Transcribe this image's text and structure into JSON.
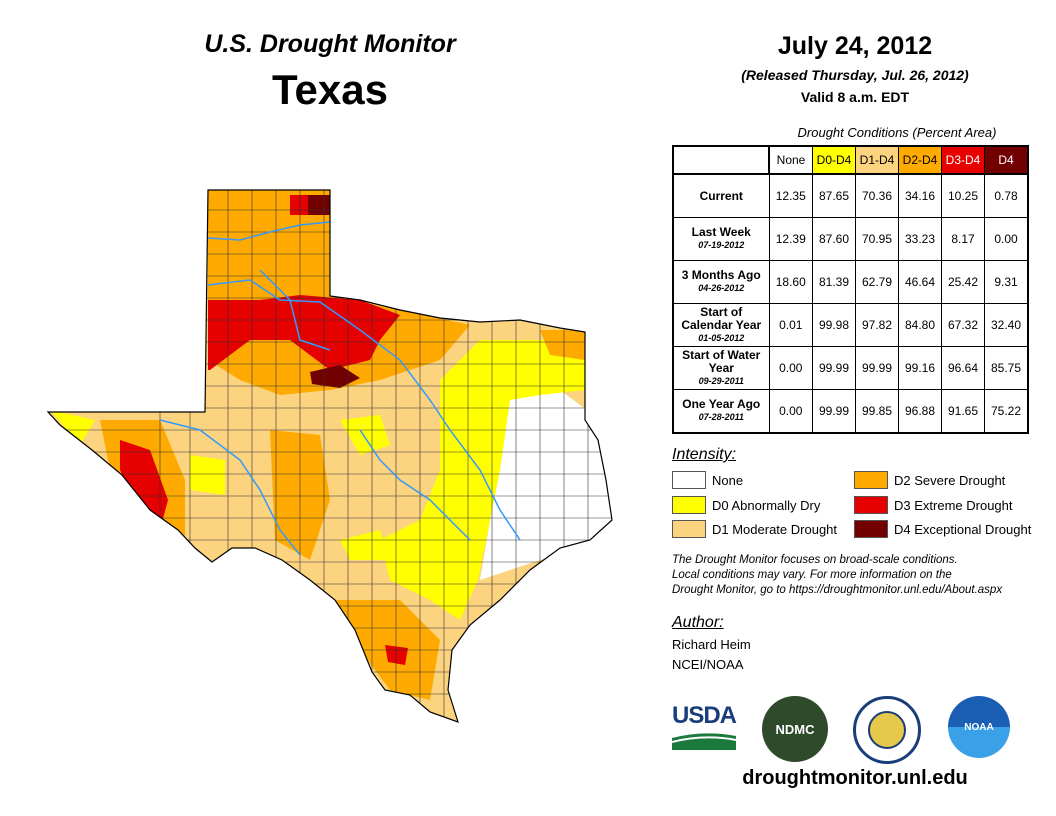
{
  "header": {
    "title": "U.S. Drought Monitor",
    "region": "Texas",
    "date": "July 24, 2012",
    "released": "(Released Thursday, Jul. 26, 2012)",
    "valid": "Valid 8 a.m. EDT"
  },
  "table": {
    "caption": "Drought Conditions (Percent Area)",
    "columns": [
      {
        "label": "None",
        "color": "#ffffff",
        "text": "#000"
      },
      {
        "label": "D0-D4",
        "color": "#ffff00",
        "text": "#000"
      },
      {
        "label": "D1-D4",
        "color": "#fcd37f",
        "text": "#000"
      },
      {
        "label": "D2-D4",
        "color": "#ffaa00",
        "text": "#000"
      },
      {
        "label": "D3-D4",
        "color": "#e60000",
        "text": "#fff"
      },
      {
        "label": "D4",
        "color": "#730000",
        "text": "#fff"
      }
    ],
    "rows": [
      {
        "label": "Current",
        "date": "",
        "values": [
          "12.35",
          "87.65",
          "70.36",
          "34.16",
          "10.25",
          "0.78"
        ]
      },
      {
        "label": "Last Week",
        "date": "07-19-2012",
        "values": [
          "12.39",
          "87.60",
          "70.95",
          "33.23",
          "8.17",
          "0.00"
        ]
      },
      {
        "label": "3 Months Ago",
        "date": "04-26-2012",
        "values": [
          "18.60",
          "81.39",
          "62.79",
          "46.64",
          "25.42",
          "9.31"
        ]
      },
      {
        "label": "Start of Calendar Year",
        "date": "01-05-2012",
        "values": [
          "0.01",
          "99.98",
          "97.82",
          "84.80",
          "67.32",
          "32.40"
        ]
      },
      {
        "label": "Start of Water Year",
        "date": "09-29-2011",
        "values": [
          "0.00",
          "99.99",
          "99.99",
          "99.16",
          "96.64",
          "85.75"
        ]
      },
      {
        "label": "One Year Ago",
        "date": "07-28-2011",
        "values": [
          "0.00",
          "99.99",
          "99.85",
          "96.88",
          "91.65",
          "75.22"
        ]
      }
    ]
  },
  "legend": {
    "title": "Intensity:",
    "items": [
      {
        "label": "None",
        "color": "#ffffff"
      },
      {
        "label": "D0 Abnormally Dry",
        "color": "#ffff00"
      },
      {
        "label": "D1 Moderate Drought",
        "color": "#fcd37f"
      },
      {
        "label": "D2 Severe Drought",
        "color": "#ffaa00"
      },
      {
        "label": "D3 Extreme Drought",
        "color": "#e60000"
      },
      {
        "label": "D4 Exceptional Drought",
        "color": "#730000"
      }
    ]
  },
  "note": [
    "The Drought Monitor focuses on broad-scale conditions.",
    "Local conditions may vary. For more information on the",
    "Drought Monitor, go to https://droughtmonitor.unl.edu/About.aspx"
  ],
  "author": {
    "title": "Author:",
    "name": "Richard Heim",
    "org": "NCEI/NOAA"
  },
  "logos": {
    "usda": "USDA",
    "ndmc": "NDMC",
    "noaa": "NOAA"
  },
  "footer": {
    "url": "droughtmonitor.unl.edu"
  }
}
